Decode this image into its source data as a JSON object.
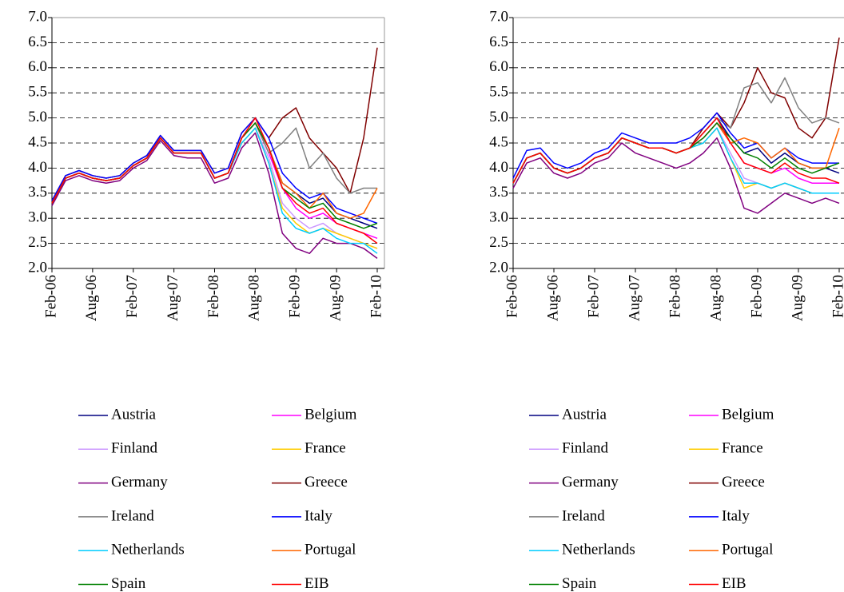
{
  "chart_data": [
    {
      "type": "line",
      "categories": [
        "Feb-06",
        null,
        null,
        "Aug-06",
        null,
        null,
        "Feb-07",
        null,
        null,
        "Aug-07",
        null,
        null,
        "Feb-08",
        null,
        null,
        "Aug-08",
        null,
        null,
        "Feb-09",
        null,
        null,
        "Aug-09",
        null,
        null,
        "Feb-10"
      ],
      "ylim": [
        2,
        7
      ],
      "yticks": [
        {
          "value": 2,
          "label": "2.0"
        },
        2.5,
        {
          "value": 3,
          "label": "3.0"
        },
        3.5,
        {
          "value": 4,
          "label": "4.0"
        },
        4.5,
        {
          "value": 5,
          "label": "5.0"
        },
        5.5,
        {
          "value": 6,
          "label": "6.0"
        },
        6.5,
        {
          "value": 7,
          "label": "7.0"
        }
      ],
      "grid": true,
      "series": [
        {
          "name": "Austria",
          "color": "#000080",
          "values": [
            3.3,
            3.8,
            3.9,
            3.8,
            3.75,
            3.8,
            4.05,
            4.2,
            4.6,
            4.3,
            4.3,
            4.3,
            3.8,
            3.9,
            4.6,
            4.9,
            4.4,
            3.7,
            3.5,
            3.3,
            3.4,
            3.1,
            3.0,
            2.9,
            2.8
          ]
        },
        {
          "name": "Belgium",
          "color": "#ff00ff",
          "values": [
            3.3,
            3.8,
            3.9,
            3.8,
            3.75,
            3.8,
            4.05,
            4.2,
            4.6,
            4.3,
            4.3,
            4.3,
            3.8,
            3.9,
            4.6,
            4.9,
            4.3,
            3.6,
            3.2,
            3.0,
            3.1,
            2.9,
            2.8,
            2.7,
            2.6
          ]
        },
        {
          "name": "Finland",
          "color": "#cc99ff",
          "values": [
            3.3,
            3.8,
            3.9,
            3.8,
            3.75,
            3.8,
            4.05,
            4.2,
            4.6,
            4.3,
            4.3,
            4.3,
            3.8,
            3.9,
            4.5,
            4.8,
            4.2,
            3.3,
            3.0,
            2.8,
            2.9,
            2.7,
            2.6,
            2.5,
            2.4
          ]
        },
        {
          "name": "France",
          "color": "#ffcc00",
          "values": [
            3.3,
            3.8,
            3.9,
            3.8,
            3.75,
            3.8,
            4.05,
            4.2,
            4.6,
            4.3,
            4.3,
            4.3,
            3.8,
            3.9,
            4.5,
            4.8,
            4.1,
            3.2,
            2.9,
            2.7,
            2.8,
            2.7,
            2.6,
            2.5,
            2.4
          ]
        },
        {
          "name": "Germany",
          "color": "#800080",
          "values": [
            3.25,
            3.75,
            3.85,
            3.75,
            3.7,
            3.75,
            4.0,
            4.15,
            4.55,
            4.25,
            4.2,
            4.2,
            3.7,
            3.8,
            4.4,
            4.7,
            3.9,
            2.7,
            2.4,
            2.3,
            2.6,
            2.5,
            2.5,
            2.4,
            2.2
          ]
        },
        {
          "name": "Greece",
          "color": "#800000",
          "values": [
            3.35,
            3.85,
            3.95,
            3.85,
            3.8,
            3.85,
            4.1,
            4.25,
            4.65,
            4.35,
            4.35,
            4.35,
            3.9,
            4.0,
            4.7,
            5.0,
            4.6,
            5.0,
            5.2,
            4.6,
            4.3,
            4.0,
            3.5,
            4.6,
            6.4
          ]
        },
        {
          "name": "Ireland",
          "color": "#808080",
          "values": [
            3.3,
            3.8,
            3.9,
            3.8,
            3.75,
            3.8,
            4.05,
            4.2,
            4.6,
            4.3,
            4.3,
            4.3,
            3.8,
            3.9,
            4.6,
            4.9,
            4.3,
            4.5,
            4.8,
            4.0,
            4.3,
            3.8,
            3.5,
            3.6,
            3.6
          ]
        },
        {
          "name": "Italy",
          "color": "#0000ff",
          "values": [
            3.35,
            3.85,
            3.95,
            3.85,
            3.8,
            3.85,
            4.1,
            4.25,
            4.65,
            4.35,
            4.35,
            4.35,
            3.9,
            4.0,
            4.7,
            5.0,
            4.6,
            3.9,
            3.6,
            3.4,
            3.5,
            3.2,
            3.1,
            3.0,
            2.9
          ]
        },
        {
          "name": "Netherlands",
          "color": "#00ccff",
          "values": [
            3.3,
            3.8,
            3.9,
            3.8,
            3.75,
            3.8,
            4.05,
            4.2,
            4.6,
            4.3,
            4.3,
            4.3,
            3.8,
            3.9,
            4.5,
            4.8,
            4.1,
            3.1,
            2.8,
            2.7,
            2.8,
            2.6,
            2.5,
            2.5,
            2.3
          ]
        },
        {
          "name": "Portugal",
          "color": "#ff6600",
          "values": [
            3.3,
            3.8,
            3.9,
            3.8,
            3.75,
            3.8,
            4.05,
            4.2,
            4.6,
            4.3,
            4.3,
            4.3,
            3.8,
            3.9,
            4.6,
            4.9,
            4.4,
            3.7,
            3.5,
            3.2,
            3.5,
            3.1,
            3.0,
            3.1,
            3.6
          ]
        },
        {
          "name": "Spain",
          "color": "#008000",
          "values": [
            3.3,
            3.8,
            3.9,
            3.8,
            3.75,
            3.8,
            4.05,
            4.2,
            4.6,
            4.3,
            4.3,
            4.3,
            3.8,
            3.9,
            4.6,
            4.9,
            4.4,
            3.6,
            3.4,
            3.2,
            3.3,
            3.0,
            2.9,
            2.8,
            2.9
          ]
        },
        {
          "name": "EIB",
          "color": "#ff0000",
          "values": [
            3.3,
            3.8,
            3.9,
            3.8,
            3.75,
            3.8,
            4.05,
            4.2,
            4.6,
            4.3,
            4.3,
            4.3,
            3.8,
            3.9,
            4.6,
            5.0,
            4.4,
            3.6,
            3.3,
            3.1,
            3.2,
            2.9,
            2.8,
            2.7,
            2.5
          ]
        }
      ]
    },
    {
      "type": "line",
      "categories": [
        "Feb-06",
        null,
        null,
        "Aug-06",
        null,
        null,
        "Feb-07",
        null,
        null,
        "Aug-07",
        null,
        null,
        "Feb-08",
        null,
        null,
        "Aug-08",
        null,
        null,
        "Feb-09",
        null,
        null,
        "Aug-09",
        null,
        null,
        "Feb-10"
      ],
      "ylim": [
        2,
        7
      ],
      "yticks": [
        {
          "value": 2,
          "label": "2.0"
        },
        2.5,
        {
          "value": 3,
          "label": "3.0"
        },
        3.5,
        {
          "value": 4,
          "label": "4.0"
        },
        4.5,
        {
          "value": 5,
          "label": "5.0"
        },
        5.5,
        {
          "value": 6,
          "label": "6.0"
        },
        6.5,
        {
          "value": 7,
          "label": "7.0"
        }
      ],
      "grid": true,
      "series": [
        {
          "name": "Austria",
          "color": "#000080",
          "values": [
            3.7,
            4.2,
            4.3,
            4.0,
            3.9,
            4.0,
            4.2,
            4.3,
            4.6,
            4.5,
            4.4,
            4.4,
            4.3,
            4.4,
            4.7,
            5.0,
            4.6,
            4.3,
            4.4,
            4.1,
            4.3,
            4.1,
            4.0,
            4.0,
            3.9
          ]
        },
        {
          "name": "Belgium",
          "color": "#ff00ff",
          "values": [
            3.7,
            4.2,
            4.3,
            4.0,
            3.9,
            4.0,
            4.2,
            4.3,
            4.6,
            4.5,
            4.4,
            4.4,
            4.3,
            4.4,
            4.6,
            4.9,
            4.5,
            4.1,
            4.0,
            3.9,
            4.0,
            3.8,
            3.7,
            3.7,
            3.7
          ]
        },
        {
          "name": "Finland",
          "color": "#cc99ff",
          "values": [
            3.7,
            4.2,
            4.3,
            4.0,
            3.9,
            4.0,
            4.2,
            4.3,
            4.6,
            4.5,
            4.4,
            4.4,
            4.3,
            4.4,
            4.5,
            4.8,
            4.3,
            3.8,
            3.7,
            3.6,
            3.7,
            3.6,
            3.5,
            3.5,
            3.5
          ]
        },
        {
          "name": "France",
          "color": "#ffcc00",
          "values": [
            3.7,
            4.2,
            4.3,
            4.0,
            3.9,
            4.0,
            4.2,
            4.3,
            4.6,
            4.5,
            4.4,
            4.4,
            4.3,
            4.4,
            4.5,
            4.8,
            4.2,
            3.6,
            3.7,
            3.6,
            3.7,
            3.6,
            3.5,
            3.5,
            3.5
          ]
        },
        {
          "name": "Germany",
          "color": "#800080",
          "values": [
            3.6,
            4.1,
            4.2,
            3.9,
            3.8,
            3.9,
            4.1,
            4.2,
            4.5,
            4.3,
            4.2,
            4.1,
            4.0,
            4.1,
            4.3,
            4.6,
            4.0,
            3.2,
            3.1,
            3.3,
            3.5,
            3.4,
            3.3,
            3.4,
            3.3
          ]
        },
        {
          "name": "Greece",
          "color": "#800000",
          "values": [
            3.7,
            4.2,
            4.3,
            4.0,
            3.9,
            4.0,
            4.2,
            4.3,
            4.6,
            4.5,
            4.4,
            4.4,
            4.3,
            4.4,
            4.8,
            5.1,
            4.8,
            5.3,
            6.0,
            5.5,
            5.4,
            4.8,
            4.6,
            5.0,
            6.6
          ]
        },
        {
          "name": "Ireland",
          "color": "#808080",
          "values": [
            3.7,
            4.2,
            4.3,
            4.0,
            3.9,
            4.0,
            4.2,
            4.3,
            4.6,
            4.5,
            4.4,
            4.4,
            4.3,
            4.4,
            4.7,
            5.0,
            4.8,
            5.6,
            5.7,
            5.3,
            5.8,
            5.2,
            4.9,
            5.0,
            4.9
          ]
        },
        {
          "name": "Italy",
          "color": "#0000ff",
          "values": [
            3.8,
            4.35,
            4.4,
            4.1,
            4.0,
            4.1,
            4.3,
            4.4,
            4.7,
            4.6,
            4.5,
            4.5,
            4.5,
            4.6,
            4.8,
            5.1,
            4.7,
            4.4,
            4.5,
            4.2,
            4.4,
            4.2,
            4.1,
            4.1,
            4.1
          ]
        },
        {
          "name": "Netherlands",
          "color": "#00ccff",
          "values": [
            3.7,
            4.2,
            4.3,
            4.0,
            3.9,
            4.0,
            4.2,
            4.3,
            4.6,
            4.5,
            4.4,
            4.4,
            4.3,
            4.4,
            4.5,
            4.8,
            4.2,
            3.7,
            3.7,
            3.6,
            3.7,
            3.6,
            3.5,
            3.5,
            3.5
          ]
        },
        {
          "name": "Portugal",
          "color": "#ff6600",
          "values": [
            3.7,
            4.2,
            4.3,
            4.0,
            3.9,
            4.0,
            4.2,
            4.3,
            4.6,
            4.5,
            4.4,
            4.4,
            4.3,
            4.4,
            4.6,
            4.9,
            4.5,
            4.6,
            4.5,
            4.2,
            4.4,
            4.1,
            4.0,
            4.0,
            4.8
          ]
        },
        {
          "name": "Spain",
          "color": "#008000",
          "values": [
            3.7,
            4.2,
            4.3,
            4.0,
            3.9,
            4.0,
            4.2,
            4.3,
            4.6,
            4.5,
            4.4,
            4.4,
            4.3,
            4.4,
            4.6,
            4.9,
            4.6,
            4.3,
            4.2,
            4.0,
            4.2,
            4.0,
            3.9,
            4.0,
            4.1
          ]
        },
        {
          "name": "EIB",
          "color": "#ff0000",
          "values": [
            3.7,
            4.2,
            4.3,
            4.0,
            3.9,
            4.0,
            4.2,
            4.3,
            4.6,
            4.5,
            4.4,
            4.4,
            4.3,
            4.4,
            4.7,
            5.0,
            4.5,
            4.1,
            4.0,
            3.9,
            4.1,
            3.9,
            3.8,
            3.8,
            3.7
          ]
        }
      ]
    }
  ]
}
